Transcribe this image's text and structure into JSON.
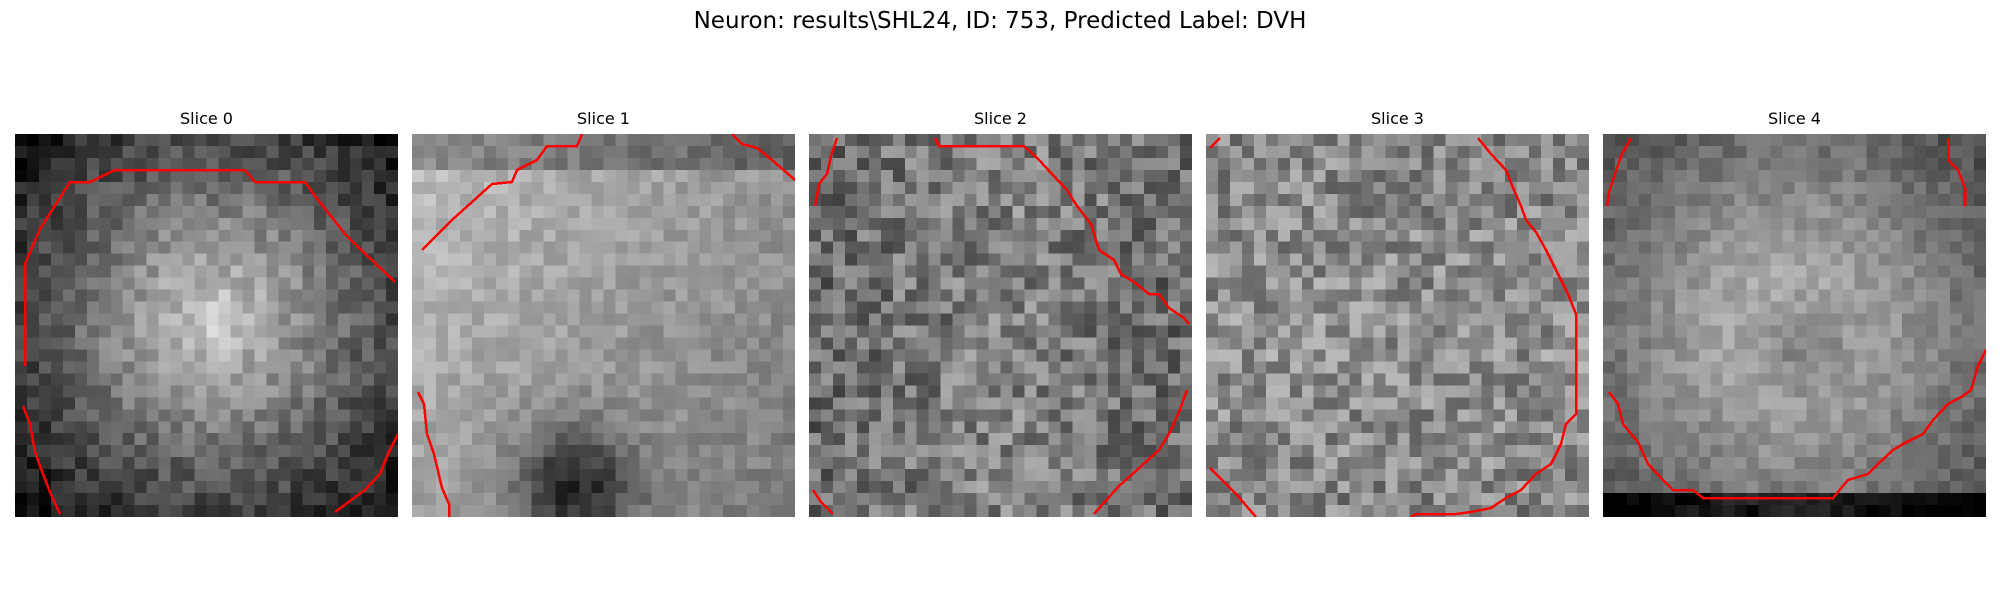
{
  "figure": {
    "title": "Neuron: results\\SHL24, ID: 753, Predicted Label: DVH",
    "contour_color": "#ff0000"
  },
  "panels": [
    {
      "title": "Slice 0"
    },
    {
      "title": "Slice 1"
    },
    {
      "title": "Slice 2"
    },
    {
      "title": "Slice 3"
    },
    {
      "title": "Slice 4"
    }
  ]
}
